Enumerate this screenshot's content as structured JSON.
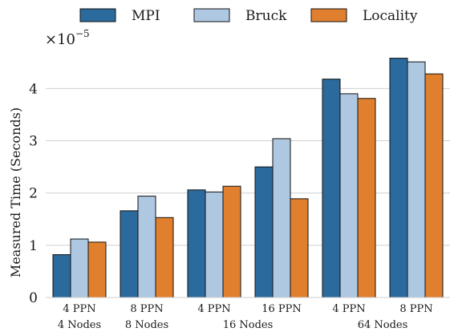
{
  "chart_data": {
    "type": "bar",
    "title": "",
    "xlabel": "",
    "ylabel": "Measured Time (Seconds)",
    "multiplier_label": "×10",
    "multiplier_exponent": "−5",
    "ylim": [
      0,
      4.85
    ],
    "yticks": [
      0,
      1,
      2,
      3,
      4
    ],
    "grid": true,
    "legend_position": "top",
    "categories": [
      "4 PPN",
      "8 PPN",
      "4 PPN",
      "16 PPN",
      "4 PPN",
      "8 PPN"
    ],
    "node_groups": [
      {
        "label": "4 Nodes",
        "categories": [
          0
        ]
      },
      {
        "label": "8 Nodes",
        "categories": [
          1
        ]
      },
      {
        "label": "16 Nodes",
        "categories": [
          2,
          3
        ]
      },
      {
        "label": "64 Nodes",
        "categories": [
          4,
          5
        ]
      }
    ],
    "series": [
      {
        "name": "MPI",
        "color": "#2b6a9c",
        "values": [
          0.82,
          1.66,
          2.06,
          2.5,
          4.18,
          4.58
        ]
      },
      {
        "name": "Bruck",
        "color": "#aec8e2",
        "values": [
          1.12,
          1.94,
          2.02,
          3.04,
          3.9,
          4.51
        ]
      },
      {
        "name": "Locality",
        "color": "#e0802e",
        "values": [
          1.06,
          1.53,
          2.13,
          1.89,
          3.81,
          4.28
        ]
      }
    ]
  }
}
